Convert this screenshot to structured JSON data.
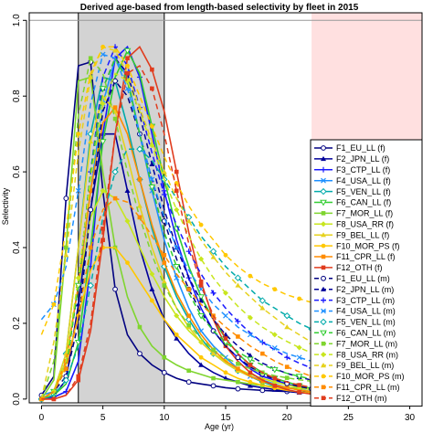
{
  "chart_data": {
    "type": "line",
    "title": "Derived age-based from length-based selectivity by fleet in 2015",
    "xlabel": "Age (yr)",
    "ylabel": "Selectivity",
    "xlim": [
      -1,
      31
    ],
    "ylim": [
      -0.01,
      1.02
    ],
    "x_ticks": [
      "0",
      "5",
      "10",
      "15",
      "20",
      "25",
      "30"
    ],
    "y_ticks": [
      "0.0",
      "0.2",
      "0.4",
      "0.6",
      "0.8",
      "1.0"
    ],
    "grid": false,
    "legend_position": "right",
    "shaded_regions": [
      {
        "x0": 3,
        "x1": 10,
        "color": "#d3d3d3"
      },
      {
        "x0": 22,
        "x1": 31,
        "color": "#ffe0e0"
      }
    ],
    "reference_line_y": 1.0,
    "x": [
      0,
      1,
      2,
      3,
      4,
      5,
      6,
      7,
      8,
      9,
      10,
      11,
      12,
      13,
      14,
      15,
      16,
      17,
      18,
      19,
      20,
      21,
      22,
      23,
      24,
      25,
      26,
      27,
      28,
      29,
      30
    ],
    "series": [
      {
        "name": "F1_EU_LL (f)",
        "color": "#000080",
        "dash": "solid",
        "marker": "circle-open",
        "values": [
          0.01,
          0.06,
          0.53,
          0.88,
          0.89,
          0.55,
          0.29,
          0.17,
          0.12,
          0.09,
          0.07,
          0.055,
          0.045,
          0.04,
          0.035,
          0.03,
          0.027,
          0.025,
          0.023,
          0.021,
          0.02,
          0.019,
          0.018,
          0.017,
          0.016,
          0.015,
          0.014,
          0.013,
          0.012,
          0.011,
          0.01
        ]
      },
      {
        "name": "F2_JPN_LL (f)",
        "color": "#000099",
        "dash": "solid",
        "marker": "triangle-up",
        "values": [
          0.0,
          0.01,
          0.05,
          0.25,
          0.5,
          0.7,
          0.7,
          0.55,
          0.4,
          0.29,
          0.21,
          0.16,
          0.12,
          0.09,
          0.07,
          0.055,
          0.045,
          0.035,
          0.03,
          0.025,
          0.02,
          0.017,
          0.015,
          0.013,
          0.011,
          0.01,
          0.009,
          0.008,
          0.007,
          0.006,
          0.005
        ]
      },
      {
        "name": "F3_CTP_LL (f)",
        "color": "#1a1aff",
        "dash": "solid",
        "marker": "plus",
        "values": [
          0.0,
          0.005,
          0.02,
          0.1,
          0.35,
          0.7,
          0.9,
          0.93,
          0.85,
          0.7,
          0.55,
          0.42,
          0.32,
          0.24,
          0.18,
          0.14,
          0.11,
          0.08,
          0.06,
          0.05,
          0.04,
          0.03,
          0.025,
          0.02,
          0.016,
          0.013,
          0.01,
          0.008,
          0.007,
          0.006,
          0.005
        ]
      },
      {
        "name": "F4_USA_LL (f)",
        "color": "#1e90ff",
        "dash": "solid",
        "marker": "cross",
        "values": [
          0.01,
          0.02,
          0.1,
          0.3,
          0.55,
          0.78,
          0.9,
          0.85,
          0.7,
          0.55,
          0.42,
          0.32,
          0.24,
          0.18,
          0.14,
          0.11,
          0.08,
          0.06,
          0.05,
          0.04,
          0.03,
          0.025,
          0.02,
          0.017,
          0.014,
          0.012,
          0.01,
          0.008,
          0.007,
          0.006,
          0.005
        ]
      },
      {
        "name": "F5_VEN_LL (f)",
        "color": "#00aaaa",
        "dash": "solid",
        "marker": "diamond-open",
        "values": [
          0.0,
          0.02,
          0.12,
          0.4,
          0.7,
          0.85,
          0.84,
          0.72,
          0.58,
          0.45,
          0.35,
          0.27,
          0.21,
          0.16,
          0.12,
          0.095,
          0.075,
          0.06,
          0.045,
          0.035,
          0.03,
          0.024,
          0.019,
          0.015,
          0.012,
          0.01,
          0.008,
          0.007,
          0.006,
          0.005,
          0.004
        ]
      },
      {
        "name": "F6_CAN_LL (f)",
        "color": "#32cd32",
        "dash": "solid",
        "marker": "triangle-down-open",
        "values": [
          0.0,
          0.01,
          0.04,
          0.15,
          0.4,
          0.68,
          0.85,
          0.92,
          0.86,
          0.72,
          0.58,
          0.45,
          0.35,
          0.27,
          0.21,
          0.16,
          0.12,
          0.09,
          0.07,
          0.055,
          0.045,
          0.035,
          0.028,
          0.022,
          0.018,
          0.014,
          0.011,
          0.009,
          0.007,
          0.006,
          0.005
        ]
      },
      {
        "name": "F7_MOR_LL (f)",
        "color": "#7fd52f",
        "dash": "solid",
        "marker": "square",
        "values": [
          0.0,
          0.05,
          0.4,
          0.84,
          0.85,
          0.6,
          0.4,
          0.27,
          0.19,
          0.14,
          0.11,
          0.09,
          0.075,
          0.065,
          0.055,
          0.05,
          0.045,
          0.04,
          0.036,
          0.033,
          0.03,
          0.028,
          0.026,
          0.024,
          0.022,
          0.02,
          0.018,
          0.016,
          0.015,
          0.014,
          0.013
        ]
      },
      {
        "name": "F8_USA_RR (f)",
        "color": "#c8e61e",
        "dash": "solid",
        "marker": "diamond",
        "values": [
          0.0,
          0.02,
          0.1,
          0.3,
          0.48,
          0.55,
          0.53,
          0.47,
          0.4,
          0.33,
          0.27,
          0.22,
          0.18,
          0.15,
          0.12,
          0.1,
          0.08,
          0.065,
          0.055,
          0.045,
          0.037,
          0.03,
          0.025,
          0.02,
          0.017,
          0.014,
          0.012,
          0.01,
          0.008,
          0.007,
          0.006
        ]
      },
      {
        "name": "F9_BEL_LL (f)",
        "color": "#e6d21e",
        "dash": "solid",
        "marker": "triangle-up",
        "values": [
          0.0,
          0.02,
          0.12,
          0.4,
          0.68,
          0.8,
          0.76,
          0.64,
          0.51,
          0.4,
          0.31,
          0.24,
          0.19,
          0.15,
          0.12,
          0.095,
          0.075,
          0.06,
          0.047,
          0.038,
          0.03,
          0.024,
          0.02,
          0.016,
          0.013,
          0.011,
          0.009,
          0.007,
          0.006,
          0.005,
          0.004
        ]
      },
      {
        "name": "F10_MOR_PS (f)",
        "color": "#ffc800",
        "dash": "solid",
        "marker": "circle",
        "values": [
          0.0,
          0.02,
          0.09,
          0.22,
          0.34,
          0.4,
          0.4,
          0.36,
          0.31,
          0.26,
          0.21,
          0.17,
          0.14,
          0.11,
          0.09,
          0.07,
          0.055,
          0.045,
          0.036,
          0.029,
          0.023,
          0.019,
          0.015,
          0.012,
          0.01,
          0.008,
          0.0065,
          0.005,
          0.004,
          0.0035,
          0.003
        ]
      },
      {
        "name": "F11_CPR_LL (f)",
        "color": "#ff8c00",
        "dash": "solid",
        "marker": "square",
        "values": [
          0.0,
          0.02,
          0.1,
          0.3,
          0.55,
          0.73,
          0.77,
          0.7,
          0.58,
          0.46,
          0.36,
          0.28,
          0.22,
          0.17,
          0.13,
          0.1,
          0.08,
          0.06,
          0.048,
          0.038,
          0.03,
          0.024,
          0.019,
          0.015,
          0.012,
          0.01,
          0.008,
          0.0065,
          0.005,
          0.004,
          0.003
        ]
      },
      {
        "name": "F12_OTH (f)",
        "color": "#e03c1e",
        "dash": "solid",
        "marker": "square",
        "values": [
          0.0,
          0.0,
          0.01,
          0.05,
          0.18,
          0.42,
          0.7,
          0.9,
          0.93,
          0.87,
          0.76,
          0.6,
          0.44,
          0.31,
          0.21,
          0.14,
          0.1,
          0.07,
          0.05,
          0.035,
          0.025,
          0.018,
          0.013,
          0.01,
          0.007,
          0.005,
          0.004,
          0.003,
          0.002,
          0.0015,
          0.001
        ]
      },
      {
        "name": "F1_EU_LL (m)",
        "color": "#000080",
        "dash": "dashed",
        "marker": "circle-open",
        "values": [
          0.0,
          0.02,
          0.06,
          0.2,
          0.5,
          0.76,
          0.84,
          0.8,
          0.7,
          0.58,
          0.47,
          0.37,
          0.29,
          0.23,
          0.18,
          0.14,
          0.11,
          0.085,
          0.066,
          0.052,
          0.041,
          0.033,
          0.027,
          0.022,
          0.018,
          0.015,
          0.012,
          0.01,
          0.008,
          0.007,
          0.006
        ]
      },
      {
        "name": "F2_JPN_LL (m)",
        "color": "#000099",
        "dash": "dashed",
        "marker": "triangle-up",
        "values": [
          0.0,
          0.02,
          0.08,
          0.3,
          0.6,
          0.82,
          0.9,
          0.86,
          0.75,
          0.62,
          0.5,
          0.4,
          0.32,
          0.26,
          0.21,
          0.17,
          0.14,
          0.115,
          0.095,
          0.08,
          0.068,
          0.058,
          0.05,
          0.043,
          0.037,
          0.032,
          0.028,
          0.025,
          0.022,
          0.02,
          0.018
        ]
      },
      {
        "name": "F3_CTP_LL (m)",
        "color": "#1a1aff",
        "dash": "dashed",
        "marker": "plus",
        "values": [
          0.0,
          0.02,
          0.08,
          0.3,
          0.6,
          0.85,
          0.93,
          0.88,
          0.77,
          0.65,
          0.54,
          0.46,
          0.39,
          0.33,
          0.28,
          0.24,
          0.205,
          0.175,
          0.15,
          0.13,
          0.11,
          0.095,
          0.082,
          0.071,
          0.062,
          0.054,
          0.047,
          0.041,
          0.036,
          0.032,
          0.028
        ]
      },
      {
        "name": "F4_USA_LL (m)",
        "color": "#1e90ff",
        "dash": "dashed",
        "marker": "cross",
        "values": [
          0.21,
          0.25,
          0.35,
          0.55,
          0.78,
          0.91,
          0.9,
          0.82,
          0.7,
          0.58,
          0.48,
          0.4,
          0.34,
          0.29,
          0.25,
          0.22,
          0.19,
          0.17,
          0.15,
          0.135,
          0.12,
          0.11,
          0.1,
          0.09,
          0.082,
          0.075,
          0.068,
          0.062,
          0.056,
          0.051,
          0.047
        ]
      },
      {
        "name": "F5_VEN_LL (m)",
        "color": "#00aaaa",
        "dash": "dashed",
        "marker": "diamond-open",
        "values": [
          0.0,
          0.01,
          0.05,
          0.14,
          0.3,
          0.48,
          0.6,
          0.66,
          0.66,
          0.63,
          0.58,
          0.53,
          0.48,
          0.43,
          0.39,
          0.35,
          0.32,
          0.29,
          0.26,
          0.24,
          0.22,
          0.2,
          0.185,
          0.17,
          0.155,
          0.145,
          0.135,
          0.125,
          0.115,
          0.105,
          0.1
        ]
      },
      {
        "name": "F6_CAN_LL (m)",
        "color": "#32cd32",
        "dash": "dashed",
        "marker": "triangle-down-open",
        "values": [
          0.0,
          0.02,
          0.08,
          0.3,
          0.6,
          0.82,
          0.9,
          0.84,
          0.7,
          0.56,
          0.44,
          0.35,
          0.28,
          0.22,
          0.18,
          0.15,
          0.125,
          0.105,
          0.09,
          0.078,
          0.068,
          0.06,
          0.053,
          0.047,
          0.042,
          0.038,
          0.034,
          0.031,
          0.028,
          0.025,
          0.023
        ]
      },
      {
        "name": "F7_MOR_LL (m)",
        "color": "#7fd52f",
        "dash": "dashed",
        "marker": "square",
        "values": [
          0.0,
          0.1,
          0.4,
          0.75,
          0.9,
          0.86,
          0.74,
          0.6,
          0.48,
          0.38,
          0.3,
          0.24,
          0.195,
          0.16,
          0.13,
          0.11,
          0.093,
          0.08,
          0.07,
          0.062,
          0.056,
          0.051,
          0.047,
          0.044,
          0.041,
          0.039,
          0.037,
          0.035,
          0.033,
          0.031,
          0.03
        ]
      },
      {
        "name": "F8_USA_RR (m)",
        "color": "#c8e61e",
        "dash": "dashed",
        "marker": "diamond",
        "values": [
          0.0,
          0.02,
          0.1,
          0.32,
          0.58,
          0.78,
          0.86,
          0.84,
          0.76,
          0.67,
          0.58,
          0.5,
          0.43,
          0.37,
          0.32,
          0.28,
          0.245,
          0.215,
          0.19,
          0.17,
          0.152,
          0.136,
          0.122,
          0.11,
          0.1,
          0.091,
          0.083,
          0.076,
          0.07,
          0.064,
          0.059
        ]
      },
      {
        "name": "F9_BEL_LL (m)",
        "color": "#e6d21e",
        "dash": "dashed",
        "marker": "triangle-up",
        "values": [
          0.0,
          0.15,
          0.38,
          0.65,
          0.85,
          0.93,
          0.92,
          0.86,
          0.77,
          0.68,
          0.6,
          0.53,
          0.47,
          0.42,
          0.375,
          0.335,
          0.3,
          0.27,
          0.24,
          0.215,
          0.19,
          0.17,
          0.15,
          0.135,
          0.12,
          0.105,
          0.093,
          0.082,
          0.072,
          0.064,
          0.056
        ]
      },
      {
        "name": "F10_MOR_PS (m)",
        "color": "#ffc800",
        "dash": "dashed",
        "marker": "circle",
        "values": [
          0.17,
          0.25,
          0.45,
          0.7,
          0.86,
          0.93,
          0.93,
          0.88,
          0.8,
          0.72,
          0.64,
          0.57,
          0.51,
          0.46,
          0.42,
          0.38,
          0.35,
          0.325,
          0.305,
          0.29,
          0.275,
          0.265,
          0.255,
          0.245,
          0.24,
          0.235,
          0.23,
          0.225,
          0.22,
          0.215,
          0.21
        ]
      },
      {
        "name": "F11_CPR_LL (m)",
        "color": "#ff8c00",
        "dash": "dashed",
        "marker": "square",
        "values": [
          0.0,
          0.02,
          0.08,
          0.22,
          0.4,
          0.5,
          0.53,
          0.52,
          0.48,
          0.43,
          0.38,
          0.33,
          0.29,
          0.25,
          0.22,
          0.19,
          0.165,
          0.14,
          0.12,
          0.1,
          0.085,
          0.072,
          0.06,
          0.05,
          0.042,
          0.036,
          0.03,
          0.025,
          0.021,
          0.018,
          0.015
        ]
      },
      {
        "name": "F12_OTH (m)",
        "color": "#e03c1e",
        "dash": "dashed",
        "marker": "square",
        "values": [
          0.0,
          0.0,
          0.01,
          0.06,
          0.2,
          0.45,
          0.7,
          0.86,
          0.88,
          0.82,
          0.7,
          0.55,
          0.41,
          0.3,
          0.22,
          0.16,
          0.12,
          0.09,
          0.07,
          0.055,
          0.045,
          0.037,
          0.031,
          0.027,
          0.024,
          0.021,
          0.019,
          0.017,
          0.015,
          0.013,
          0.012
        ]
      }
    ]
  }
}
